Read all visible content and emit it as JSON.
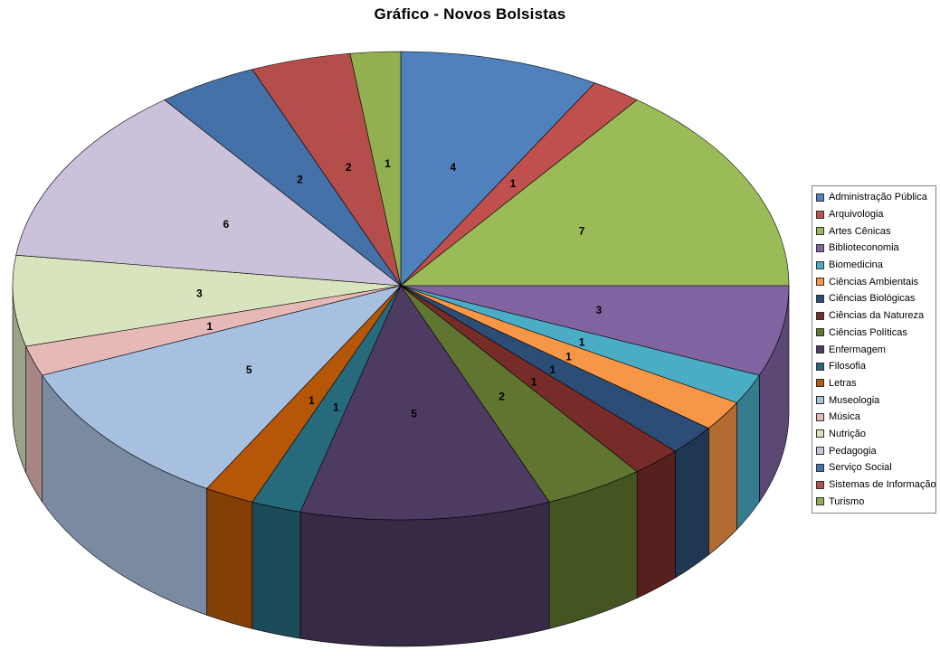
{
  "title": "Gráfico - Novos Bolsistas",
  "chart_data": {
    "type": "pie",
    "style": "3d-pie",
    "title": "Gráfico - Novos Bolsistas",
    "legend_position": "right",
    "data_labels": "values",
    "total": 48,
    "categories": [
      "Administração Pública",
      "Arquivologia",
      "Artes Cênicas",
      "Biblioteconomia",
      "Biomedicina",
      "Ciências Ambientais",
      "Ciências Biológicas",
      "Ciências da Natureza",
      "Ciências Políticas",
      "Enfermagem",
      "Filosofia",
      "Letras",
      "Museologia",
      "Música",
      "Nutrição",
      "Pedagogia",
      "Serviço Social",
      "Sistemas de Informação",
      "Turismo"
    ],
    "values": [
      4,
      1,
      7,
      3,
      1,
      1,
      1,
      1,
      2,
      5,
      1,
      1,
      5,
      1,
      3,
      6,
      2,
      2,
      1
    ],
    "colors": [
      "#4F81BD",
      "#C0504D",
      "#9BBB59",
      "#8064A2",
      "#4BACC6",
      "#F79646",
      "#2C4D75",
      "#772C2A",
      "#5F7530",
      "#4D3B62",
      "#276A7C",
      "#B65708",
      "#A8C0DF",
      "#E6B9B8",
      "#D7E4BD",
      "#CCC1DA",
      "#4472A8",
      "#B34E4B",
      "#92B04F"
    ]
  }
}
